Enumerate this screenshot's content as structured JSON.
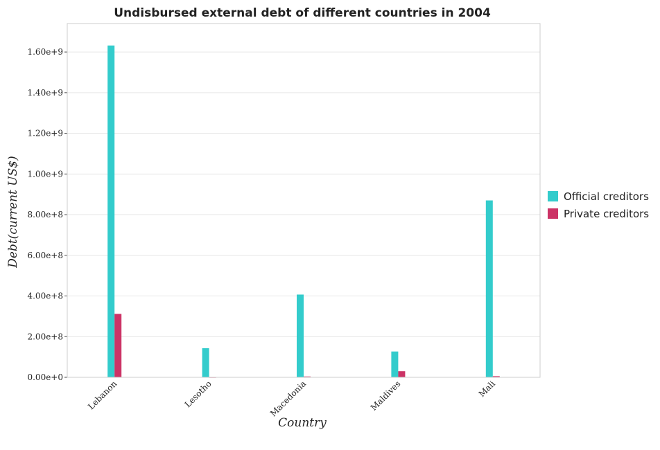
{
  "chart_data": {
    "type": "bar",
    "title": "Undisbursed external debt of different countries in 2004",
    "xlabel": "Country",
    "ylabel": "Debt(current US$)",
    "categories": [
      "Lebanon",
      "Lesotho",
      "Macedonia",
      "Maldives",
      "Mali"
    ],
    "series": [
      {
        "name": "Official creditors",
        "color": "#33cccc",
        "values": [
          1632000000,
          143000000,
          407000000,
          127000000,
          870000000
        ]
      },
      {
        "name": "Private creditors",
        "color": "#cc3366",
        "values": [
          312000000,
          500000,
          4000000,
          30000000,
          5500000
        ]
      }
    ],
    "ylim": [
      0,
      1740000000
    ],
    "yticks": [
      0,
      200000000,
      400000000,
      600000000,
      800000000,
      1000000000,
      1200000000,
      1400000000,
      1600000000
    ],
    "ytick_labels": [
      "0.00e+0",
      "2.00e+8",
      "4.00e+8",
      "6.00e+8",
      "8.00e+8",
      "1.00e+9",
      "1.20e+9",
      "1.40e+9",
      "1.60e+9"
    ],
    "grid": true,
    "legend_position": "right"
  }
}
